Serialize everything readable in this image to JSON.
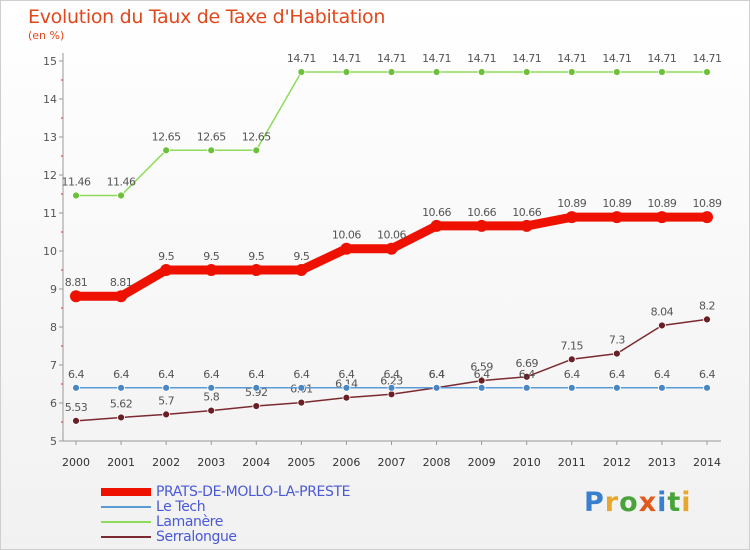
{
  "title": "Evolution du Taux de Taxe d'Habitation",
  "subtitle": "(en %)",
  "logo": {
    "letters": [
      {
        "ch": "P",
        "color": "#3a7fcf"
      },
      {
        "ch": "r",
        "color": "#e8a72a"
      },
      {
        "ch": "o",
        "color": "#4aa33a"
      },
      {
        "ch": "x",
        "color": "#e05a1c"
      },
      {
        "ch": "i",
        "color": "#3a7fcf"
      },
      {
        "ch": "t",
        "color": "#4aa33a"
      },
      {
        "ch": "i",
        "color": "#e8a72a"
      }
    ]
  },
  "chart_data": {
    "type": "line",
    "title": "Evolution du Taux de Taxe d'Habitation",
    "ylabel": "(en %)",
    "xlabel": "",
    "x": [
      "2000",
      "2001",
      "2002",
      "2003",
      "2004",
      "2005",
      "2006",
      "2007",
      "2008",
      "2009",
      "2010",
      "2011",
      "2012",
      "2013",
      "2014"
    ],
    "ylim": [
      5,
      15
    ],
    "yticks": [
      "5",
      "6",
      "7",
      "8",
      "9",
      "10",
      "11",
      "12",
      "13",
      "14",
      "15"
    ],
    "grid": false,
    "legend_position": "bottom-left",
    "series": [
      {
        "name": "PRATS-DE-MOLLO-LA-PRESTE",
        "color": "#ee1100",
        "values": [
          8.81,
          8.81,
          9.5,
          9.5,
          9.5,
          9.5,
          10.06,
          10.06,
          10.66,
          10.66,
          10.66,
          10.89,
          10.89,
          10.89,
          10.89
        ],
        "labels": [
          "8.81",
          "8.81",
          "9.5",
          "9.5",
          "9.5",
          "9.5",
          "10.06",
          "10.06",
          "10.66",
          "10.66",
          "10.66",
          "10.89",
          "10.89",
          "10.89",
          "10.89"
        ]
      },
      {
        "name": "Le Tech",
        "color": "#5b9bd5",
        "values": [
          6.4,
          6.4,
          6.4,
          6.4,
          6.4,
          6.4,
          6.4,
          6.4,
          6.4,
          6.4,
          6.4,
          6.4,
          6.4,
          6.4,
          6.4
        ],
        "labels": [
          "6.4",
          "6.4",
          "6.4",
          "6.4",
          "6.4",
          "6.4",
          "6.4",
          "6.4",
          "6.4",
          "6.4",
          "6.4",
          "6.4",
          "6.4",
          "6.4",
          "6.4"
        ]
      },
      {
        "name": "Lamanère",
        "color": "#8fdb5a",
        "values": [
          11.46,
          11.46,
          12.65,
          12.65,
          12.65,
          14.71,
          14.71,
          14.71,
          14.71,
          14.71,
          14.71,
          14.71,
          14.71,
          14.71,
          14.71
        ],
        "labels": [
          "11.46",
          "11.46",
          "12.65",
          "12.65",
          "12.65",
          "14.71",
          "14.71",
          "14.71",
          "14.71",
          "14.71",
          "14.71",
          "14.71",
          "14.71",
          "14.71",
          "14.71"
        ]
      },
      {
        "name": "Serralongue",
        "color": "#7a2a30",
        "values": [
          5.53,
          5.62,
          5.7,
          5.8,
          5.92,
          6.01,
          6.14,
          6.23,
          6.4,
          6.59,
          6.69,
          7.15,
          7.3,
          8.04,
          8.2
        ],
        "labels": [
          "5.53",
          "5.62",
          "5.7",
          "5.8",
          "5.92",
          "6.01",
          "6.14",
          "6.23",
          "6.4",
          "6.59",
          "6.69",
          "7.15",
          "7.3",
          "8.04",
          "8.2"
        ]
      }
    ]
  }
}
